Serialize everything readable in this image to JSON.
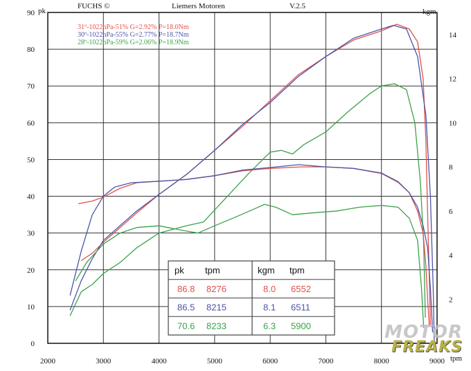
{
  "header": {
    "brand": "FUCHS ©",
    "company": "Liemers Motoren",
    "version": "V.2.5"
  },
  "colors": {
    "red": "#e0504a",
    "blue": "#4a55a8",
    "green": "#3aa14a",
    "grid": "#333333",
    "axis": "#111111"
  },
  "chart_data": {
    "type": "line",
    "left_axis": {
      "label": "pk",
      "min": 0,
      "max": 90,
      "ticks": [
        0,
        10,
        20,
        30,
        40,
        50,
        60,
        70,
        80,
        90
      ]
    },
    "right_axis": {
      "label": "kgm",
      "min": 0,
      "max": 15,
      "ticks": [
        2,
        4,
        6,
        8,
        10,
        12,
        14
      ]
    },
    "x_axis": {
      "label": "tpm",
      "min": 2000,
      "max": 9000,
      "ticks": [
        2000,
        3000,
        4000,
        5000,
        6000,
        7000,
        8000,
        9000
      ]
    },
    "grid": true,
    "legend_lines": [
      {
        "text": "31º-1022hPa-51% G=2.92% P=18.0Nm",
        "color": "red"
      },
      {
        "text": "30º-1022hPa-55% G=2.77% P=18.7Nm",
        "color": "blue"
      },
      {
        "text": "28º-1022hPa-59% G=2.06% P=18.9Nm",
        "color": "green"
      }
    ],
    "series": [
      {
        "color": "red",
        "quantity": "power",
        "axis": "pk",
        "points": [
          [
            2600,
            22.5
          ],
          [
            2800,
            24.5
          ],
          [
            3000,
            27.5
          ],
          [
            3300,
            31.5
          ],
          [
            3600,
            35.5
          ],
          [
            4000,
            40.5
          ],
          [
            4500,
            46
          ],
          [
            5000,
            52.5
          ],
          [
            5500,
            59
          ],
          [
            6000,
            66
          ],
          [
            6500,
            73
          ],
          [
            7000,
            78
          ],
          [
            7500,
            82.5
          ],
          [
            8000,
            85
          ],
          [
            8276,
            86.8
          ],
          [
            8500,
            85.5
          ],
          [
            8650,
            82
          ],
          [
            8750,
            72
          ],
          [
            8800,
            55
          ],
          [
            8830,
            35
          ],
          [
            8860,
            18
          ],
          [
            8880,
            5
          ]
        ]
      },
      {
        "color": "blue",
        "quantity": "power",
        "axis": "pk",
        "points": [
          [
            2400,
            9
          ],
          [
            2600,
            17
          ],
          [
            2800,
            23
          ],
          [
            3000,
            28
          ],
          [
            3300,
            32
          ],
          [
            3600,
            36
          ],
          [
            4000,
            40.5
          ],
          [
            4500,
            46
          ],
          [
            5000,
            52.5
          ],
          [
            5500,
            59.5
          ],
          [
            6000,
            65.5
          ],
          [
            6500,
            72.5
          ],
          [
            7000,
            78
          ],
          [
            7500,
            83
          ],
          [
            8000,
            85.5
          ],
          [
            8215,
            86.5
          ],
          [
            8450,
            85.5
          ],
          [
            8650,
            78
          ],
          [
            8800,
            62
          ],
          [
            8880,
            40
          ],
          [
            8930,
            15
          ],
          [
            8950,
            0
          ]
        ]
      },
      {
        "color": "green",
        "quantity": "power",
        "axis": "pk",
        "points": [
          [
            2400,
            7.5
          ],
          [
            2600,
            14
          ],
          [
            2800,
            16
          ],
          [
            3000,
            19
          ],
          [
            3300,
            22
          ],
          [
            3600,
            26
          ],
          [
            4000,
            30
          ],
          [
            4500,
            32
          ],
          [
            4800,
            33
          ],
          [
            5200,
            39.5
          ],
          [
            5600,
            46
          ],
          [
            6000,
            52
          ],
          [
            6200,
            52.5
          ],
          [
            6400,
            51.5
          ],
          [
            6600,
            54
          ],
          [
            7000,
            57.5
          ],
          [
            7400,
            63
          ],
          [
            7800,
            68
          ],
          [
            8000,
            70
          ],
          [
            8233,
            70.6
          ],
          [
            8450,
            69
          ],
          [
            8600,
            60
          ],
          [
            8700,
            44
          ],
          [
            8760,
            27
          ],
          [
            8790,
            7
          ]
        ]
      },
      {
        "color": "red",
        "quantity": "torque",
        "axis": "kgm",
        "points": [
          [
            2550,
            6.33
          ],
          [
            2800,
            6.45
          ],
          [
            3000,
            6.63
          ],
          [
            3300,
            7.03
          ],
          [
            3600,
            7.28
          ],
          [
            4000,
            7.35
          ],
          [
            4500,
            7.43
          ],
          [
            5000,
            7.6
          ],
          [
            5500,
            7.82
          ],
          [
            6000,
            7.93
          ],
          [
            6552,
            8.0
          ],
          [
            7000,
            8.0
          ],
          [
            7500,
            7.93
          ],
          [
            8000,
            7.7
          ],
          [
            8300,
            7.3
          ],
          [
            8500,
            6.83
          ],
          [
            8650,
            6.0
          ],
          [
            8750,
            5.0
          ],
          [
            8800,
            3.5
          ],
          [
            8830,
            2.0
          ],
          [
            8860,
            0.8
          ]
        ]
      },
      {
        "color": "blue",
        "quantity": "torque",
        "axis": "kgm",
        "points": [
          [
            2400,
            2.17
          ],
          [
            2600,
            4.17
          ],
          [
            2800,
            5.83
          ],
          [
            3000,
            6.67
          ],
          [
            3200,
            7.08
          ],
          [
            3500,
            7.28
          ],
          [
            4000,
            7.35
          ],
          [
            4500,
            7.43
          ],
          [
            5000,
            7.6
          ],
          [
            5500,
            7.85
          ],
          [
            6000,
            7.97
          ],
          [
            6511,
            8.1
          ],
          [
            7000,
            8.0
          ],
          [
            7500,
            7.93
          ],
          [
            8000,
            7.72
          ],
          [
            8300,
            7.33
          ],
          [
            8500,
            6.83
          ],
          [
            8650,
            6.17
          ],
          [
            8750,
            5.33
          ],
          [
            8830,
            4.33
          ],
          [
            8880,
            2.5
          ],
          [
            8920,
            0.5
          ]
        ]
      },
      {
        "color": "green",
        "quantity": "torque",
        "axis": "kgm",
        "points": [
          [
            2500,
            2.83
          ],
          [
            2700,
            3.67
          ],
          [
            3000,
            4.5
          ],
          [
            3300,
            5.0
          ],
          [
            3600,
            5.25
          ],
          [
            4000,
            5.33
          ],
          [
            4400,
            5.13
          ],
          [
            4700,
            5.0
          ],
          [
            5000,
            5.33
          ],
          [
            5400,
            5.75
          ],
          [
            5700,
            6.08
          ],
          [
            5900,
            6.3
          ],
          [
            6100,
            6.17
          ],
          [
            6400,
            5.83
          ],
          [
            6800,
            5.92
          ],
          [
            7200,
            6.0
          ],
          [
            7600,
            6.17
          ],
          [
            8000,
            6.25
          ],
          [
            8300,
            6.17
          ],
          [
            8500,
            5.67
          ],
          [
            8650,
            4.67
          ],
          [
            8720,
            2.5
          ],
          [
            8760,
            0.7
          ]
        ]
      }
    ],
    "table": {
      "headers": [
        "pk",
        "tpm",
        "kgm",
        "tpm"
      ],
      "rows": [
        {
          "color": "red",
          "cells": [
            "86.8",
            "8276",
            "8.0",
            "6552"
          ]
        },
        {
          "color": "blue",
          "cells": [
            "86.5",
            "8215",
            "8.1",
            "6511"
          ]
        },
        {
          "color": "green",
          "cells": [
            "70.6",
            "8233",
            "6.3",
            "5900"
          ]
        }
      ]
    }
  },
  "watermark": {
    "top": "MOTOR",
    "bottom": "FREAKS"
  }
}
